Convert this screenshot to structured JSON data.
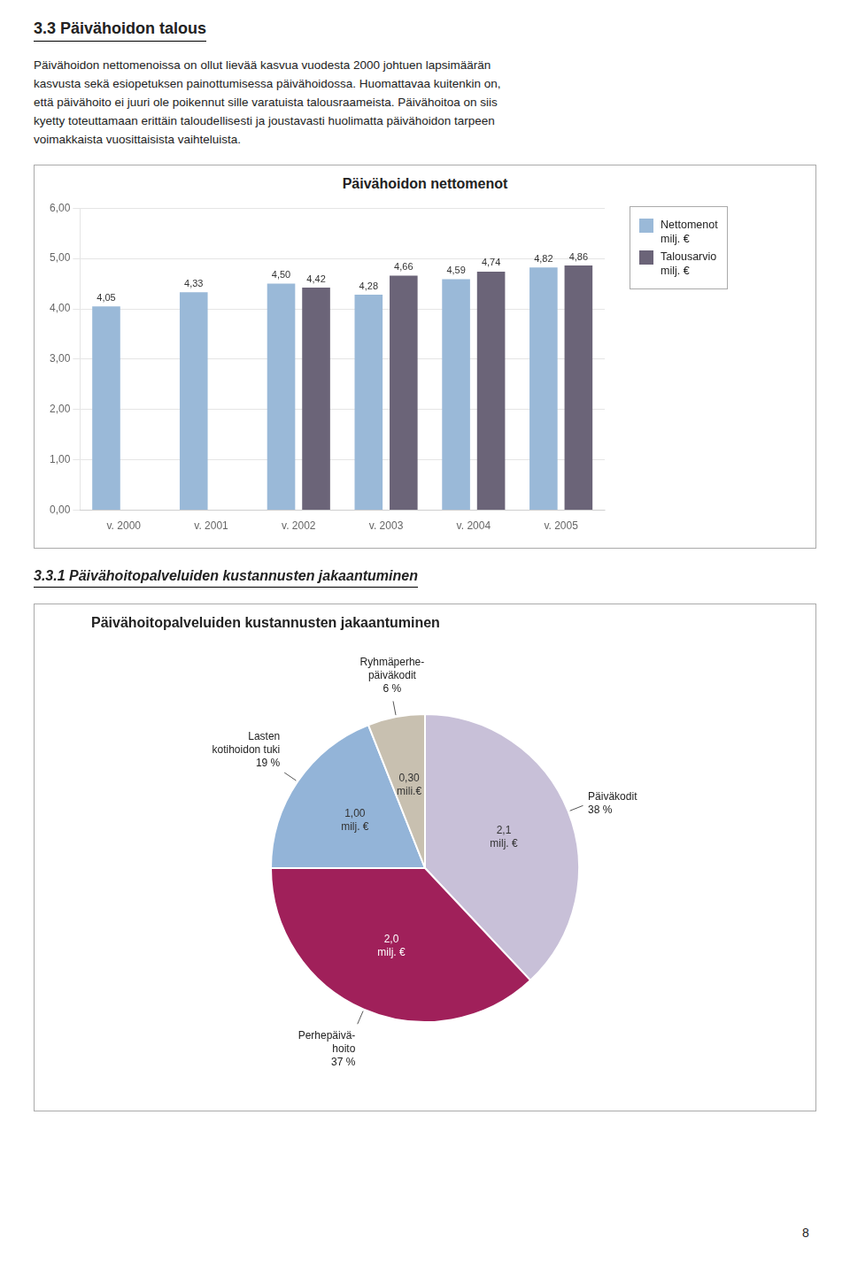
{
  "page": {
    "title": "3.3 Päivähoidon talous",
    "text": [
      "Päivähoidon nettomenoissa on ollut lievää kasvua vuodesta 2000 johtuen lapsimäärän",
      "kasvusta sekä esiopetuksen painottumisessa päivähoidossa. Huomattavaa kuitenkin on,",
      "että päivähoito ei juuri ole poikennut sille varatuista talousraameista. Päivähoitoa on siis",
      "kyetty toteuttamaan erittäin taloudellisesti ja joustavasti huolimatta päivähoidon tarpeen",
      "voimakkaista vuosittaisista vaihteluista."
    ],
    "section_title": "3.3.1 Päivähoitopalveluiden kustannusten jakaantuminen",
    "page_number": "8"
  },
  "chart_data": [
    {
      "type": "bar",
      "title": "Päivähoidon nettomenot",
      "categories": [
        "v. 2000",
        "v. 2001",
        "v. 2002",
        "v. 2003",
        "v. 2004",
        "v. 2005"
      ],
      "series": [
        {
          "name": "Nettomenot\nmilj. €",
          "color": "#9ab9d8",
          "values": [
            4.05,
            4.33,
            4.5,
            4.28,
            4.59,
            4.82
          ],
          "value_labels": [
            "4,05",
            "4,33",
            "4,50",
            "4,28",
            "4,59",
            "4,82"
          ]
        },
        {
          "name": "Talousarvio\nmilj. €",
          "color": "#6b6478",
          "values": [
            0,
            0,
            4.42,
            4.66,
            4.74,
            4.86
          ],
          "value_labels": [
            null,
            null,
            "4,42",
            "4,66",
            "4,74",
            "4,86"
          ]
        }
      ],
      "ylim": [
        0,
        6
      ],
      "yticks": [
        {
          "value": 0,
          "label": "0,00"
        },
        {
          "value": 1,
          "label": "1,00"
        },
        {
          "value": 2,
          "label": "2,00"
        },
        {
          "value": 3,
          "label": "3,00"
        },
        {
          "value": 4,
          "label": "4,00"
        },
        {
          "value": 5,
          "label": "5,00"
        },
        {
          "value": 6,
          "label": "6,00"
        }
      ],
      "grid": true,
      "legend": "right",
      "data_labels": true
    },
    {
      "type": "pie",
      "title": "Päivähoitopalveluiden kustannusten jakaantuminen",
      "categories": [
        "Päiväkodit",
        "Perhepäivä-\nhoito",
        "Lasten\nkotihoidon tuki",
        "Ryhmäperhe-\npäiväkodit"
      ],
      "values": [
        38,
        37,
        19,
        6
      ],
      "value_labels": [
        "38 %",
        "37 %",
        "19 %",
        "6 %"
      ],
      "colors": [
        "#c8c0d8",
        "#a0205a",
        "#93b4d8",
        "#c8c0b0"
      ],
      "annotations": [
        "2,1\nmilj. €",
        "2,0\nmilj. €",
        "1,00\nmilj. €",
        "0,30\nmili.€"
      ],
      "data_labels": true
    }
  ]
}
